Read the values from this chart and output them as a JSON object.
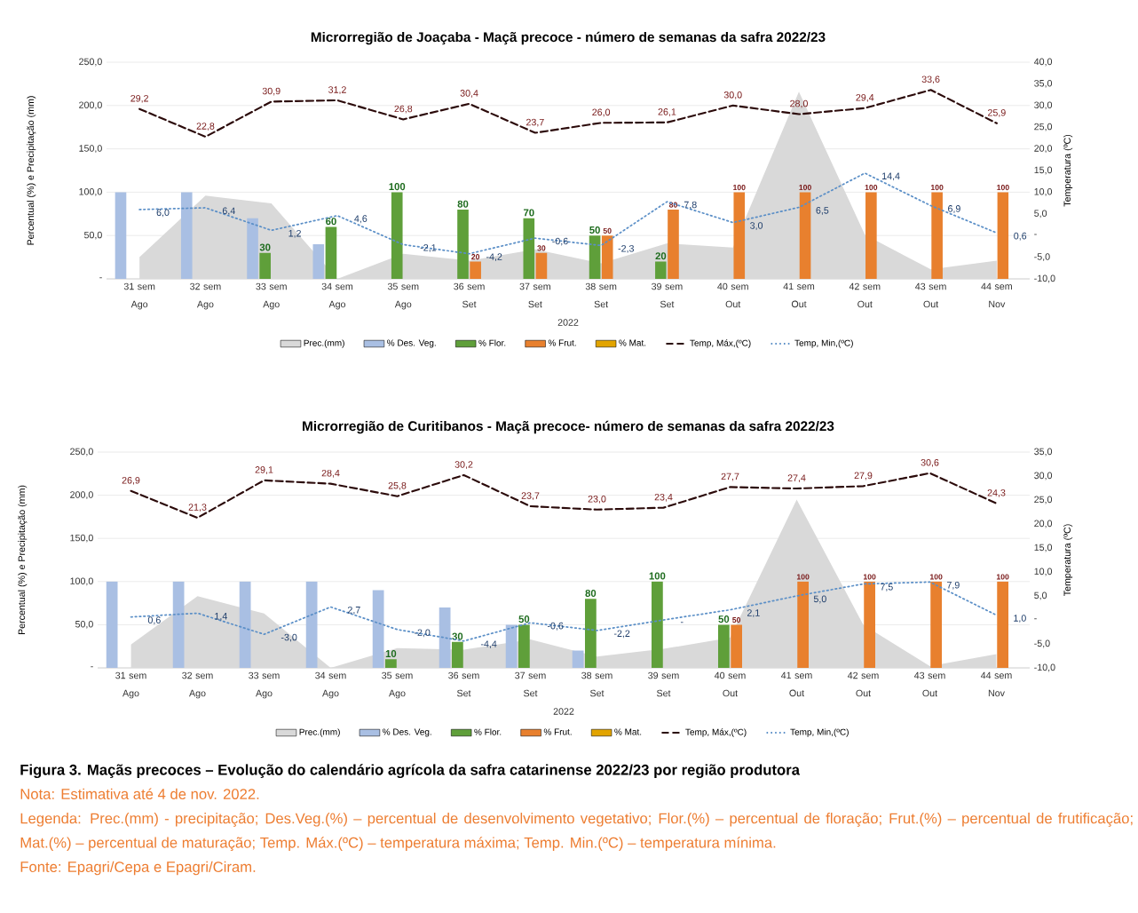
{
  "chart_data": [
    {
      "type": "bar",
      "title": "Microrregião de Joaçaba - Maçã precoce - número de semanas da safra 2022/23",
      "categories": [
        "31 sem Ago",
        "32 sem Ago",
        "33 sem Ago",
        "34 sem Ago",
        "35 sem Ago",
        "36 sem Set",
        "37 sem Set",
        "38 sem Set",
        "39 sem Set",
        "40 sem Out",
        "41 sem Out",
        "42 sem Out",
        "43 sem Out",
        "44 sem Nov"
      ],
      "ylabel": "Percentual (%) e Precipitação (mm)",
      "y2label": "Temperatura (ºC)",
      "ylim": [
        0,
        250
      ],
      "yticks": [
        {
          "value": 0,
          "label": "-"
        },
        {
          "value": 50,
          "label": "50,0"
        },
        {
          "value": 100,
          "label": "100,0"
        },
        {
          "value": 150,
          "label": "150,0"
        },
        {
          "value": 200,
          "label": "200,0"
        },
        {
          "value": 250,
          "label": "250,0"
        }
      ],
      "y2lim": [
        -10,
        40
      ],
      "y2ticks": [
        {
          "value": -10,
          "label": "-10,0"
        },
        {
          "value": -5,
          "label": "-5,0"
        },
        {
          "value": 0,
          "label": "-"
        },
        {
          "value": 5,
          "label": "5,0"
        },
        {
          "value": 10,
          "label": "10,0"
        },
        {
          "value": 15,
          "label": "15,0"
        },
        {
          "value": 20,
          "label": "20,0"
        },
        {
          "value": 25,
          "label": "25,0"
        },
        {
          "value": 30,
          "label": "30,0"
        },
        {
          "value": 35,
          "label": "35,0"
        },
        {
          "value": 40,
          "label": "40,0"
        }
      ],
      "grid": "y",
      "legend": "bottom",
      "annotations": [
        "2022"
      ],
      "series": [
        {
          "name": "Prec.(mm)",
          "type": "area",
          "color": "#d9d9d9",
          "values": [
            25,
            96,
            87,
            0,
            29,
            21,
            34,
            18,
            41,
            36,
            216,
            51,
            11,
            21
          ]
        },
        {
          "name": "% Des. Veg.",
          "color": "#a9bfe3",
          "values": [
            100,
            100,
            70,
            40,
            null,
            null,
            null,
            null,
            null,
            null,
            null,
            null,
            null,
            null
          ]
        },
        {
          "name": "% Flor.",
          "color": "#5f9f3a",
          "values": [
            null,
            null,
            30,
            60,
            100,
            80,
            70,
            50,
            20,
            null,
            null,
            null,
            null,
            null
          ],
          "value_labels": [
            null,
            null,
            "30",
            "60",
            "100",
            "80",
            "70",
            "50",
            "20",
            null,
            null,
            null,
            null,
            null
          ]
        },
        {
          "name": "% Frut.",
          "color": "#e8802e",
          "values": [
            null,
            null,
            null,
            null,
            null,
            20,
            30,
            50,
            80,
            100,
            100,
            100,
            100,
            100
          ],
          "value_labels": [
            null,
            null,
            null,
            null,
            null,
            "20",
            "30",
            "50",
            "80",
            "100",
            "100",
            "100",
            "100",
            "100"
          ]
        },
        {
          "name": "% Mat.",
          "color": "#e2a400",
          "values": [
            null,
            null,
            null,
            null,
            null,
            null,
            null,
            null,
            null,
            null,
            null,
            null,
            null,
            null
          ]
        },
        {
          "name": "Temp, Máx,(ºC)",
          "type": "line",
          "axis": "y2",
          "color": "#2b0a0a",
          "line_style": "dashed",
          "values": [
            29.2,
            22.8,
            30.9,
            31.2,
            26.8,
            30.4,
            23.7,
            26.0,
            26.1,
            30.0,
            28.0,
            29.4,
            33.6,
            25.9
          ],
          "value_labels": [
            "29,2",
            "22,8",
            "30,9",
            "31,2",
            "26,8",
            "30,4",
            "23,7",
            "26,0",
            "26,1",
            "30,0",
            "28,0",
            "29,4",
            "33,6",
            "25,9"
          ]
        },
        {
          "name": "Temp, Min,(ºC)",
          "type": "line",
          "axis": "y2",
          "color": "#5b8fc7",
          "line_style": "dotted",
          "values": [
            6.0,
            6.4,
            1.2,
            4.6,
            -2.1,
            -4.2,
            -0.6,
            -2.3,
            7.8,
            3.0,
            6.5,
            14.4,
            6.9,
            0.6
          ],
          "value_labels": [
            "6,0",
            "6,4",
            "1,2",
            "4,6",
            "-2,1",
            "-4,2",
            "-0,6",
            "-2,3",
            "7,8",
            "3,0",
            "6,5",
            "14,4",
            "6,9",
            "0,6"
          ]
        }
      ]
    },
    {
      "type": "bar",
      "title": "Microrregião de Curitibanos - Maçã precoce- número de semanas da safra 2022/23",
      "categories": [
        "31 sem Ago",
        "32 sem Ago",
        "33 sem Ago",
        "34 sem Ago",
        "35 sem Ago",
        "36 sem Set",
        "37 sem Set",
        "38 sem Set",
        "39 sem Set",
        "40 sem Out",
        "41 sem Out",
        "42 sem Out",
        "43 sem Out",
        "44 sem Nov"
      ],
      "ylabel": "Percentual (%) e Precipitação (mm)",
      "y2label": "Temperatura (ºC)",
      "ylim": [
        0,
        250
      ],
      "yticks": [
        {
          "value": 0,
          "label": "-"
        },
        {
          "value": 50,
          "label": "50,0"
        },
        {
          "value": 100,
          "label": "100,0"
        },
        {
          "value": 150,
          "label": "150,0"
        },
        {
          "value": 200,
          "label": "200,0"
        },
        {
          "value": 250,
          "label": "250,0"
        }
      ],
      "y2lim": [
        -10,
        35
      ],
      "y2ticks": [
        {
          "value": -10,
          "label": "-10,0"
        },
        {
          "value": -5,
          "label": "-5,0"
        },
        {
          "value": 0,
          "label": "-"
        },
        {
          "value": 5,
          "label": "5,0"
        },
        {
          "value": 10,
          "label": "10,0"
        },
        {
          "value": 15,
          "label": "15,0"
        },
        {
          "value": 20,
          "label": "20,0"
        },
        {
          "value": 25,
          "label": "25,0"
        },
        {
          "value": 30,
          "label": "30,0"
        },
        {
          "value": 35,
          "label": "35,0"
        }
      ],
      "grid": "y",
      "legend": "bottom",
      "annotations": [
        "2022",
        "Figura 3. Maçãs precoces – Evolução do calendário agrícola da safra catarinense 2022/23 por região produtora",
        "Nota: Estimativa até 4 de nov. 2022.",
        "Legenda: Prec.(mm) - precipitação; Des.Veg.(%) – percentual de desenvolvimento vegetativo; Flor.(%) – percentual de floração; Frut.(%) – percentual de frutificação; Mat.(%) – percentual de maturação; Temp. Máx.(ºC) – temperatura máxima;  Temp. Min.(ºC) – temperatura mínima.",
        "Fonte: Epagri/Cepa e Epagri/Ciram."
      ],
      "series": [
        {
          "name": "Prec.(mm)",
          "type": "area",
          "color": "#d9d9d9",
          "values": [
            27,
            83,
            63,
            0,
            23,
            21,
            33,
            13,
            22,
            35,
            195,
            50,
            2,
            16
          ]
        },
        {
          "name": "% Des. Veg.",
          "color": "#a9bfe3",
          "values": [
            100,
            100,
            100,
            100,
            90,
            70,
            50,
            20,
            null,
            null,
            null,
            null,
            null,
            null
          ]
        },
        {
          "name": "% Flor.",
          "color": "#5f9f3a",
          "values": [
            null,
            null,
            null,
            null,
            10,
            30,
            50,
            80,
            100,
            50,
            null,
            null,
            null,
            null
          ],
          "value_labels": [
            null,
            null,
            null,
            null,
            "10",
            "30",
            "50",
            "80",
            "100",
            "50",
            null,
            null,
            null,
            null
          ]
        },
        {
          "name": "% Frut.",
          "color": "#e8802e",
          "values": [
            null,
            null,
            null,
            null,
            null,
            null,
            null,
            null,
            null,
            50,
            100,
            100,
            100,
            100
          ],
          "value_labels": [
            null,
            null,
            null,
            null,
            null,
            null,
            null,
            null,
            null,
            "50",
            "100",
            "100",
            "100",
            "100"
          ]
        },
        {
          "name": "% Mat.",
          "color": "#e2a400",
          "values": [
            null,
            null,
            null,
            null,
            null,
            null,
            null,
            null,
            null,
            null,
            null,
            null,
            null,
            null
          ]
        },
        {
          "name": "Temp, Máx,(ºC)",
          "type": "line",
          "axis": "y2",
          "color": "#2b0a0a",
          "line_style": "dashed",
          "values": [
            26.9,
            21.3,
            29.1,
            28.4,
            25.8,
            30.2,
            23.7,
            23.0,
            23.4,
            27.7,
            27.4,
            27.9,
            30.6,
            24.3
          ],
          "value_labels": [
            "26,9",
            "21,3",
            "29,1",
            "28,4",
            "25,8",
            "30,2",
            "23,7",
            "23,0",
            "23,4",
            "27,7",
            "27,4",
            "27,9",
            "30,6",
            "24,3"
          ]
        },
        {
          "name": "Temp, Min,(ºC)",
          "type": "line",
          "axis": "y2",
          "color": "#5b8fc7",
          "line_style": "dotted",
          "values": [
            0.6,
            1.4,
            -3.0,
            2.7,
            -2.0,
            -4.4,
            -0.6,
            -2.2,
            0,
            2.1,
            5.0,
            7.5,
            7.9,
            1.0
          ],
          "value_labels": [
            "0,6",
            "1,4",
            "-3,0",
            "2,7",
            "-2,0",
            "-4,4",
            "-0,6",
            "-2,2",
            "-",
            "2,1",
            "5,0",
            "7,5",
            "7,9",
            "1,0"
          ]
        }
      ]
    }
  ]
}
